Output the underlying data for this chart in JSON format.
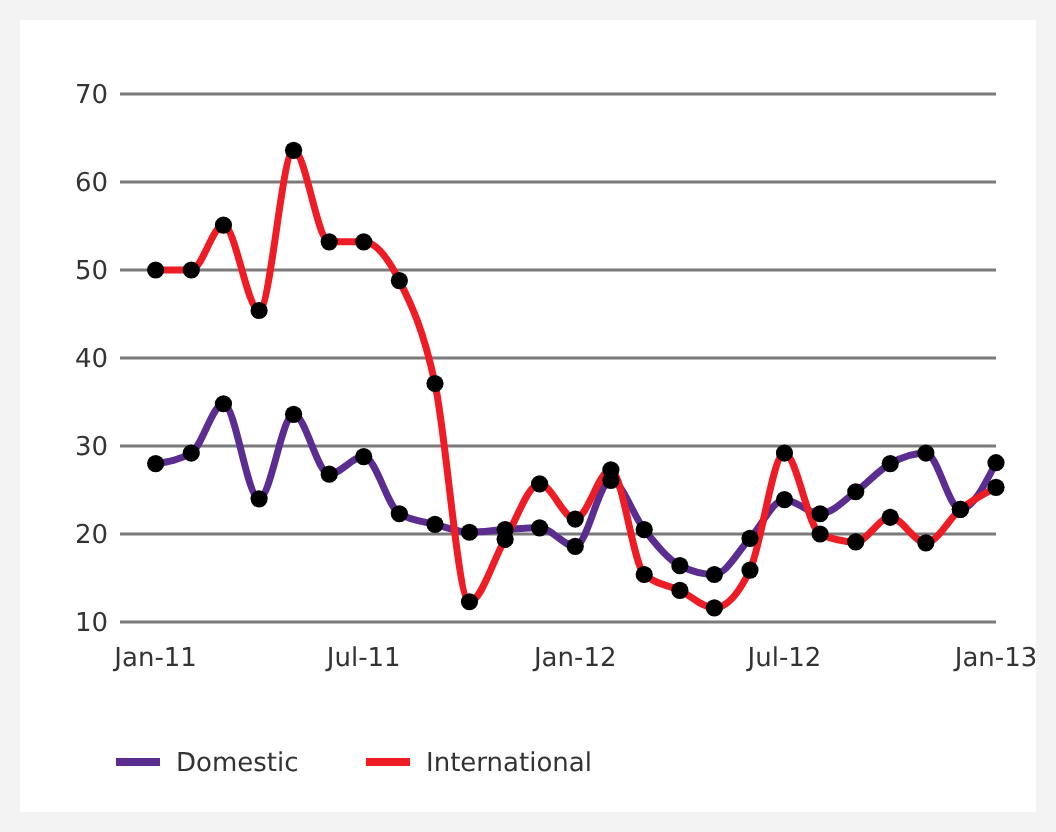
{
  "chart_data": {
    "type": "line",
    "x": [
      "2011-01",
      "2011-02",
      "2011-03",
      "2011-04",
      "2011-05",
      "2011-06",
      "2011-07",
      "2011-08",
      "2011-09",
      "2011-10",
      "2011-11",
      "2011-12",
      "2012-01",
      "2012-02",
      "2012-03",
      "2012-04",
      "2012-05",
      "2012-06",
      "2012-07",
      "2012-08",
      "2012-09",
      "2012-10",
      "2012-11",
      "2012-12",
      "2013-01"
    ],
    "series": [
      {
        "name": "Domestic",
        "color": "#5b2d91",
        "values": [
          28.0,
          29.2,
          34.8,
          24.0,
          33.6,
          26.8,
          28.8,
          22.3,
          21.1,
          20.2,
          20.5,
          20.7,
          18.6,
          26.1,
          20.5,
          16.4,
          15.4,
          19.5,
          23.9,
          22.3,
          24.8,
          28.0,
          29.2,
          22.8,
          28.1
        ]
      },
      {
        "name": "International",
        "color": "#ee1c25",
        "values": [
          50.0,
          50.0,
          55.1,
          45.4,
          63.6,
          53.2,
          53.2,
          48.8,
          37.1,
          12.3,
          19.4,
          25.7,
          21.7,
          27.3,
          15.4,
          13.6,
          11.6,
          15.9,
          29.2,
          20.0,
          19.1,
          21.9,
          19.0,
          22.8,
          25.3
        ]
      }
    ],
    "xlim": [
      "2010-12",
      "2013-01"
    ],
    "xticks": [
      {
        "value": "2011-01",
        "label": "Jan-11"
      },
      {
        "value": "2011-07",
        "label": "Jul-11"
      },
      {
        "value": "2012-01",
        "label": "Jan-12"
      },
      {
        "value": "2012-07",
        "label": "Jul-12"
      },
      {
        "value": "2013-01",
        "label": "Jan-13"
      }
    ],
    "ylim": [
      10,
      70
    ],
    "yticks": [
      10,
      20,
      30,
      40,
      50,
      60,
      70
    ],
    "grid": "y",
    "legend": "bottom",
    "marker": "circle",
    "line_style": "solid"
  }
}
